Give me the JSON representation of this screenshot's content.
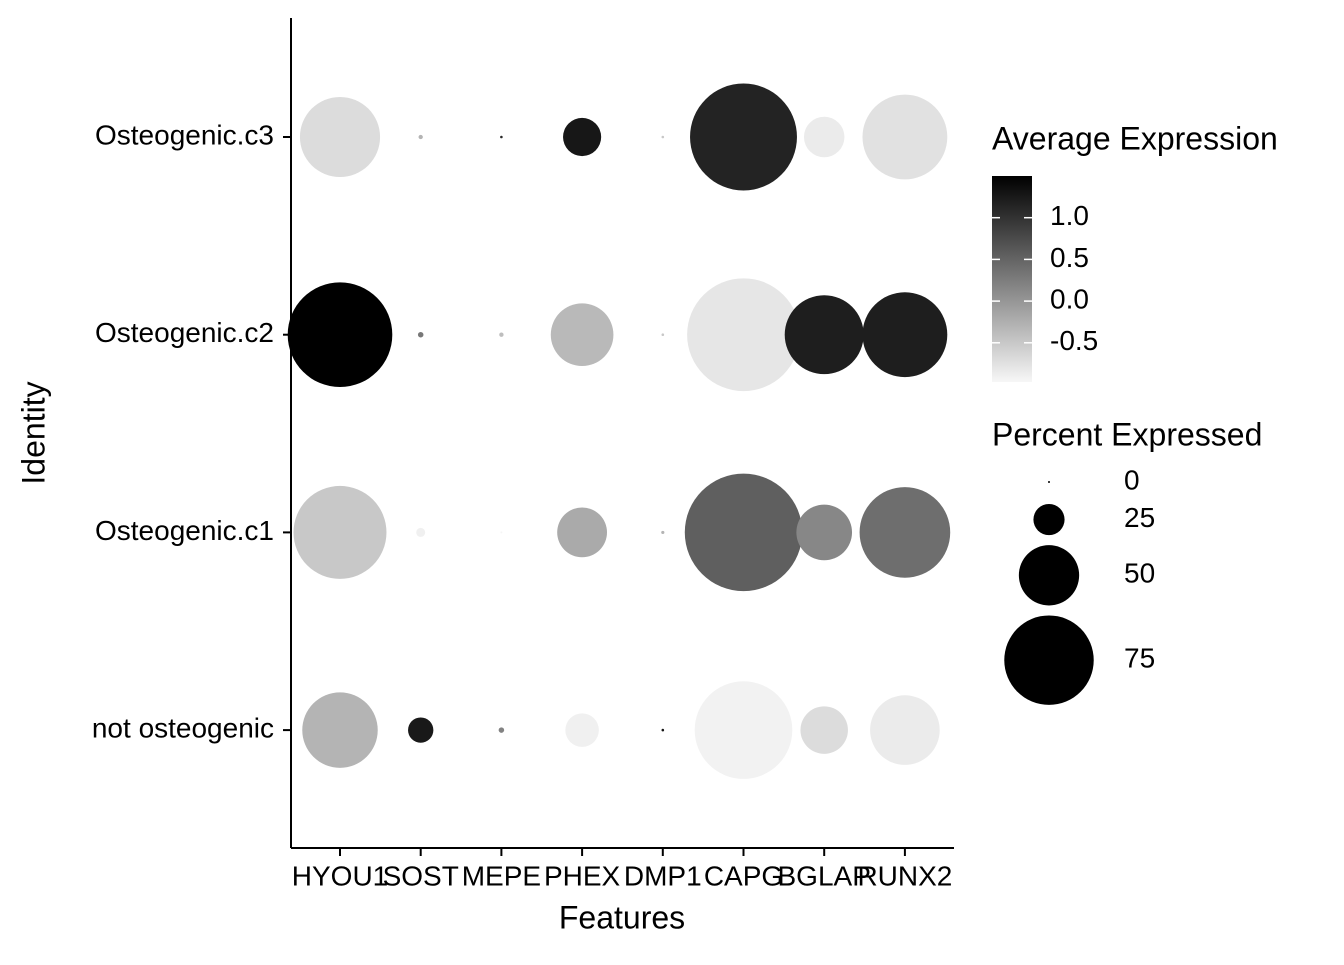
{
  "chart_data": {
    "type": "dot",
    "x_label": "Features",
    "y_label": "Identity",
    "features": [
      "HYOU1",
      "SOST",
      "MEPE",
      "PHEX",
      "DMP1",
      "CAPG",
      "BGLAP",
      "RUNX2"
    ],
    "identities": [
      "Osteogenic.c3",
      "Osteogenic.c2",
      "Osteogenic.c1",
      "not osteogenic"
    ],
    "avg_expression": [
      [
        -0.7,
        -0.3,
        1.1,
        1.27,
        -0.5,
        1.15,
        -0.85,
        -0.75
      ],
      [
        1.5,
        0.3,
        -0.4,
        -0.35,
        -0.5,
        -0.8,
        1.2,
        1.2
      ],
      [
        -0.5,
        -0.9,
        -0.95,
        -0.2,
        -0.3,
        0.55,
        0.15,
        0.4
      ],
      [
        -0.3,
        1.25,
        0.2,
        -0.9,
        1.3,
        -0.92,
        -0.7,
        -0.85
      ]
    ],
    "pct_expressed": [
      [
        67,
        2,
        0.5,
        31,
        0.5,
        90,
        33,
        71
      ],
      [
        88,
        3,
        2,
        52,
        0.5,
        95,
        66,
        71
      ],
      [
        78,
        6,
        0,
        41,
        1,
        99,
        46,
        76
      ],
      [
        63,
        20,
        3,
        27,
        0.5,
        82,
        39,
        58
      ]
    ],
    "color_title": "Average Expression",
    "color_lim": [
      -0.97,
      1.5
    ],
    "color_ticks": [
      {
        "value": 1.0,
        "label": "1.0"
      },
      {
        "value": 0.5,
        "label": "0.5"
      },
      {
        "value": 0.0,
        "label": "0.0"
      },
      {
        "value": -0.5,
        "label": "-0.5"
      }
    ],
    "color_low": "#f7f7f7",
    "color_high": "#000000",
    "size_title": "Percent Expressed",
    "size_breaks": [
      0,
      25,
      50,
      75
    ]
  }
}
